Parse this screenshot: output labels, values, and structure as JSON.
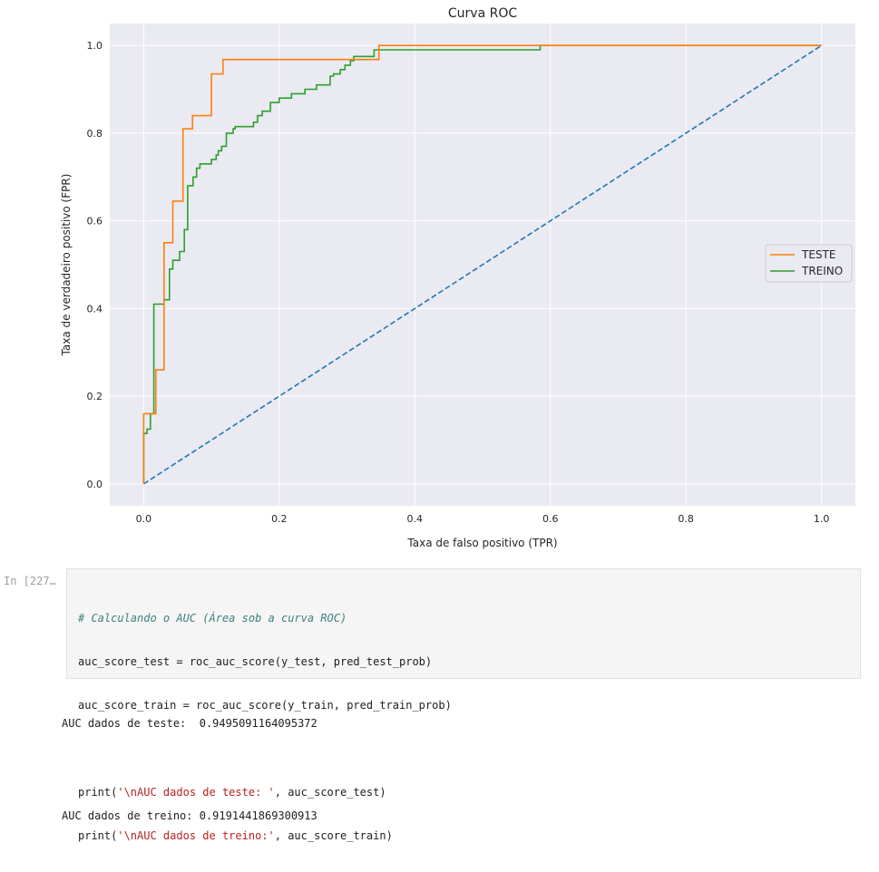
{
  "notebook": {
    "prompt": "In [227…",
    "code": {
      "line1": "# Calculando o AUC (Área sob a curva ROC)",
      "line2": "auc_score_test = roc_auc_score(y_test, pred_test_prob)",
      "line3": "auc_score_train = roc_auc_score(y_train, pred_train_prob)",
      "line5_pre": "print(",
      "line5_str": "'\\nAUC dados de teste: '",
      "line5_post": ", auc_score_test)",
      "line6_pre": "print(",
      "line6_str": "'\\nAUC dados de treino:'",
      "line6_post": ", auc_score_train)"
    },
    "output": {
      "line1": "AUC dados de teste:  0.9495091164095372",
      "line2": "AUC dados de treino: 0.9191441869300913"
    }
  },
  "chart_data": {
    "type": "line",
    "title": "Curva ROC",
    "xlabel": "Taxa de falso positivo (TPR)",
    "ylabel": "Taxa de verdadeiro positivo (FPR)",
    "xlim": [
      -0.05,
      1.05
    ],
    "ylim": [
      -0.05,
      1.05
    ],
    "xticks": [
      0.0,
      0.2,
      0.4,
      0.6,
      0.8,
      1.0
    ],
    "yticks": [
      0.0,
      0.2,
      0.4,
      0.6,
      0.8,
      1.0
    ],
    "grid": true,
    "legend_position": "center-right",
    "series": [
      {
        "name": "TESTE",
        "color": "#ff7f0e",
        "step": true,
        "x": [
          0.0,
          0.0,
          0.013,
          0.013,
          0.018,
          0.018,
          0.03,
          0.03,
          0.043,
          0.043,
          0.058,
          0.058,
          0.072,
          0.072,
          0.1,
          0.1,
          0.117,
          0.117,
          0.347,
          0.347,
          0.6,
          1.0
        ],
        "y": [
          0.0,
          0.16,
          0.16,
          0.16,
          0.16,
          0.26,
          0.26,
          0.55,
          0.55,
          0.645,
          0.645,
          0.81,
          0.81,
          0.84,
          0.84,
          0.935,
          0.935,
          0.968,
          0.968,
          1.0,
          1.0,
          1.0
        ]
      },
      {
        "name": "TREINO",
        "color": "#2ca02c",
        "step": true,
        "x": [
          0.0,
          0.0,
          0.005,
          0.005,
          0.01,
          0.01,
          0.015,
          0.015,
          0.018,
          0.018,
          0.03,
          0.03,
          0.038,
          0.038,
          0.043,
          0.043,
          0.053,
          0.053,
          0.06,
          0.06,
          0.065,
          0.065,
          0.073,
          0.073,
          0.078,
          0.078,
          0.083,
          0.083,
          0.1,
          0.1,
          0.107,
          0.107,
          0.11,
          0.11,
          0.115,
          0.115,
          0.122,
          0.122,
          0.132,
          0.132,
          0.135,
          0.135,
          0.162,
          0.162,
          0.168,
          0.168,
          0.175,
          0.175,
          0.187,
          0.187,
          0.2,
          0.2,
          0.218,
          0.218,
          0.238,
          0.238,
          0.255,
          0.255,
          0.275,
          0.275,
          0.28,
          0.28,
          0.29,
          0.29,
          0.297,
          0.297,
          0.305,
          0.305,
          0.31,
          0.31,
          0.34,
          0.34,
          0.585,
          0.585,
          1.0
        ],
        "y": [
          0.0,
          0.115,
          0.115,
          0.125,
          0.125,
          0.16,
          0.16,
          0.41,
          0.41,
          0.41,
          0.41,
          0.42,
          0.42,
          0.49,
          0.49,
          0.51,
          0.51,
          0.53,
          0.53,
          0.58,
          0.58,
          0.68,
          0.68,
          0.7,
          0.7,
          0.72,
          0.72,
          0.73,
          0.73,
          0.74,
          0.74,
          0.75,
          0.75,
          0.76,
          0.76,
          0.77,
          0.77,
          0.8,
          0.8,
          0.81,
          0.81,
          0.815,
          0.815,
          0.825,
          0.825,
          0.84,
          0.84,
          0.85,
          0.85,
          0.87,
          0.87,
          0.88,
          0.88,
          0.89,
          0.89,
          0.9,
          0.9,
          0.91,
          0.91,
          0.93,
          0.93,
          0.935,
          0.935,
          0.945,
          0.945,
          0.955,
          0.955,
          0.965,
          0.965,
          0.975,
          0.975,
          0.99,
          0.99,
          1.0,
          1.0
        ]
      },
      {
        "color": "#1f77b4",
        "dashed": true,
        "x": [
          0.0,
          1.0
        ],
        "y": [
          0.0,
          1.0
        ]
      }
    ]
  }
}
